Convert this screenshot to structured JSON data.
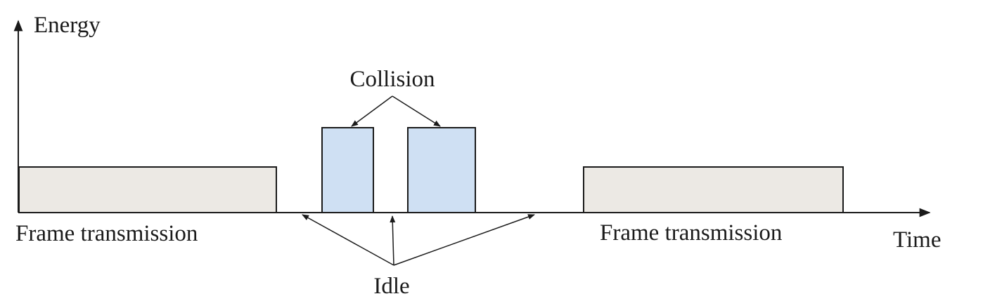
{
  "diagram": {
    "y_axis_label": "Energy",
    "x_axis_label": "Time",
    "collision_label": "Collision",
    "idle_label": "Idle",
    "frame_label_left": "Frame transmission",
    "frame_label_right": "Frame transmission"
  },
  "colors": {
    "frame_fill": "#ece9e4",
    "collision_fill": "#cfe0f3",
    "stroke": "#1a1a1a",
    "background": "#ffffff"
  }
}
